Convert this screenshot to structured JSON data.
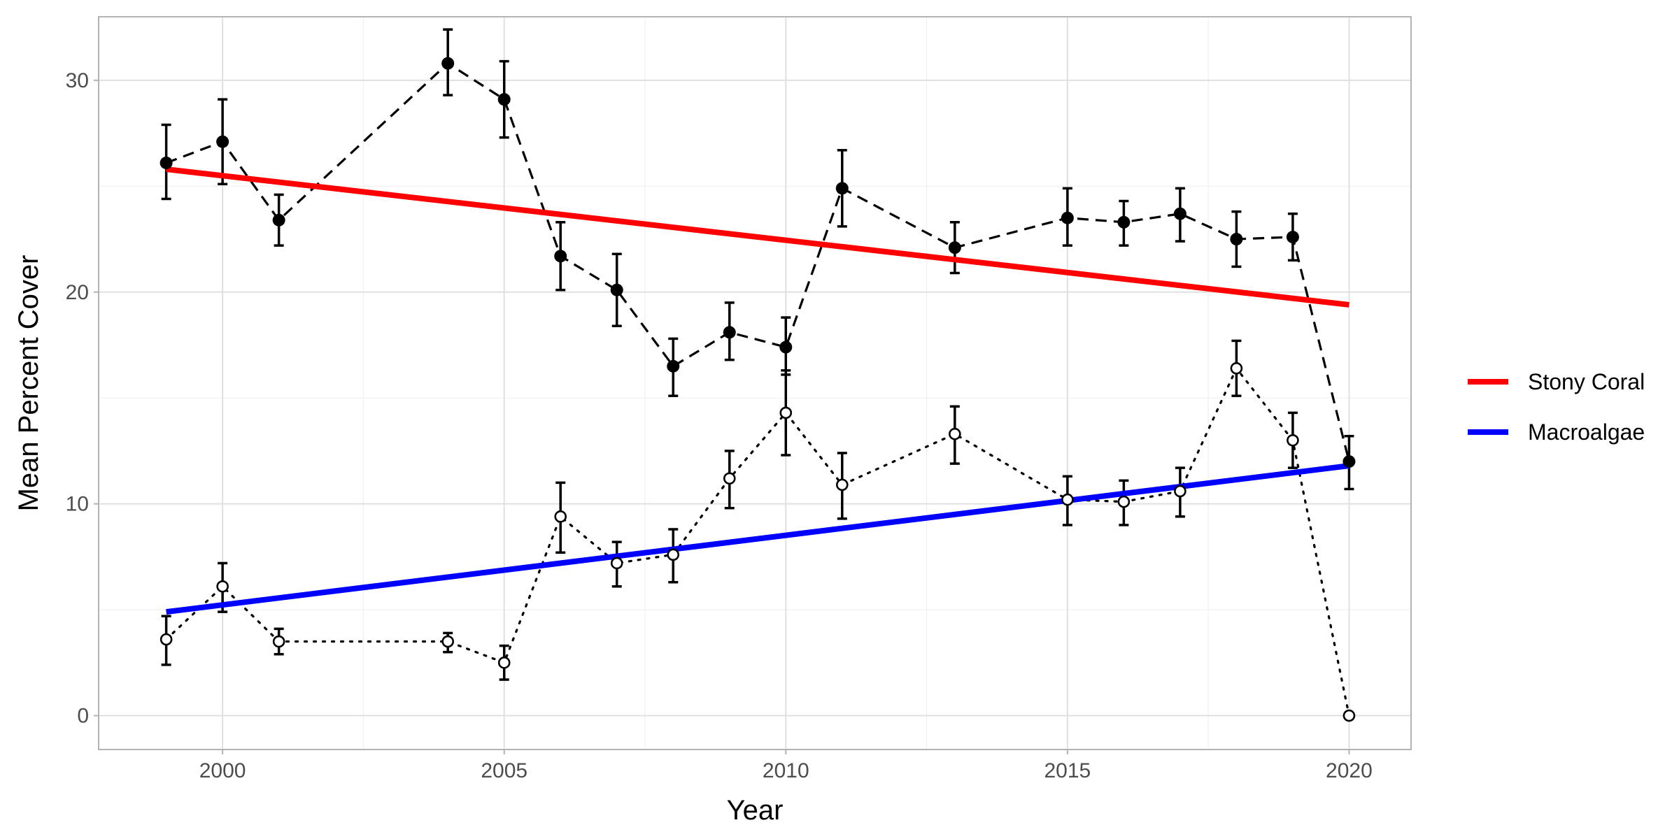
{
  "chart_data": {
    "type": "line",
    "xlabel": "Year",
    "ylabel": "Mean Percent Cover",
    "xlim": [
      1997.8,
      2021.1
    ],
    "ylim": [
      -1.6,
      33.0
    ],
    "x_ticks": [
      2000,
      2005,
      2010,
      2015,
      2020
    ],
    "y_ticks": [
      0,
      10,
      20,
      30
    ],
    "grid": true,
    "legend_position": "right",
    "series": [
      {
        "marker": "filled-circle",
        "line_style": "dashed",
        "color": "#000000",
        "points": [
          {
            "x": 1999,
            "y": 26.1,
            "lo": 24.4,
            "hi": 27.9
          },
          {
            "x": 2000,
            "y": 27.1,
            "lo": 25.1,
            "hi": 29.1
          },
          {
            "x": 2001,
            "y": 23.4,
            "lo": 22.2,
            "hi": 24.6
          },
          {
            "x": 2004,
            "y": 30.8,
            "lo": 29.3,
            "hi": 32.4
          },
          {
            "x": 2005,
            "y": 29.1,
            "lo": 27.3,
            "hi": 30.9
          },
          {
            "x": 2006,
            "y": 21.7,
            "lo": 20.1,
            "hi": 23.3
          },
          {
            "x": 2007,
            "y": 20.1,
            "lo": 18.4,
            "hi": 21.8
          },
          {
            "x": 2008,
            "y": 16.5,
            "lo": 15.1,
            "hi": 17.8
          },
          {
            "x": 2009,
            "y": 18.1,
            "lo": 16.8,
            "hi": 19.5
          },
          {
            "x": 2010,
            "y": 17.4,
            "lo": 16.1,
            "hi": 18.8
          },
          {
            "x": 2011,
            "y": 24.9,
            "lo": 23.1,
            "hi": 26.7
          },
          {
            "x": 2013,
            "y": 22.1,
            "lo": 20.9,
            "hi": 23.3
          },
          {
            "x": 2015,
            "y": 23.5,
            "lo": 22.2,
            "hi": 24.9
          },
          {
            "x": 2016,
            "y": 23.3,
            "lo": 22.2,
            "hi": 24.3
          },
          {
            "x": 2017,
            "y": 23.7,
            "lo": 22.4,
            "hi": 24.9
          },
          {
            "x": 2018,
            "y": 22.5,
            "lo": 21.2,
            "hi": 23.8
          },
          {
            "x": 2019,
            "y": 22.6,
            "lo": 21.5,
            "hi": 23.7
          },
          {
            "x": 2020,
            "y": 12.0,
            "lo": 10.7,
            "hi": 13.2
          }
        ]
      },
      {
        "marker": "open-circle",
        "line_style": "dotted",
        "color": "#000000",
        "points": [
          {
            "x": 1999,
            "y": 3.6,
            "lo": 2.4,
            "hi": 4.7
          },
          {
            "x": 2000,
            "y": 6.1,
            "lo": 4.9,
            "hi": 7.2
          },
          {
            "x": 2001,
            "y": 3.5,
            "lo": 2.9,
            "hi": 4.1
          },
          {
            "x": 2004,
            "y": 3.5,
            "lo": 3.0,
            "hi": 3.9
          },
          {
            "x": 2005,
            "y": 2.5,
            "lo": 1.7,
            "hi": 3.3
          },
          {
            "x": 2006,
            "y": 9.4,
            "lo": 7.7,
            "hi": 11.0
          },
          {
            "x": 2007,
            "y": 7.2,
            "lo": 6.1,
            "hi": 8.2
          },
          {
            "x": 2008,
            "y": 7.6,
            "lo": 6.3,
            "hi": 8.8
          },
          {
            "x": 2009,
            "y": 11.2,
            "lo": 9.8,
            "hi": 12.5
          },
          {
            "x": 2010,
            "y": 14.3,
            "lo": 12.3,
            "hi": 16.3
          },
          {
            "x": 2011,
            "y": 10.9,
            "lo": 9.3,
            "hi": 12.4
          },
          {
            "x": 2013,
            "y": 13.3,
            "lo": 11.9,
            "hi": 14.6
          },
          {
            "x": 2015,
            "y": 10.2,
            "lo": 9.0,
            "hi": 11.3
          },
          {
            "x": 2016,
            "y": 10.1,
            "lo": 9.0,
            "hi": 11.1
          },
          {
            "x": 2017,
            "y": 10.6,
            "lo": 9.4,
            "hi": 11.7
          },
          {
            "x": 2018,
            "y": 16.4,
            "lo": 15.1,
            "hi": 17.7
          },
          {
            "x": 2019,
            "y": 13.0,
            "lo": 11.7,
            "hi": 14.3
          },
          {
            "x": 2020,
            "y": 0.0,
            "lo": 0.0,
            "hi": 0.0
          }
        ]
      }
    ],
    "trend_lines": [
      {
        "name": "Stony Coral",
        "color": "#ff0000",
        "x": [
          1999,
          2020
        ],
        "y": [
          25.8,
          19.4
        ]
      },
      {
        "name": "Macroalgae",
        "color": "#0000ff",
        "x": [
          1999,
          2020
        ],
        "y": [
          4.9,
          11.8
        ]
      }
    ]
  }
}
